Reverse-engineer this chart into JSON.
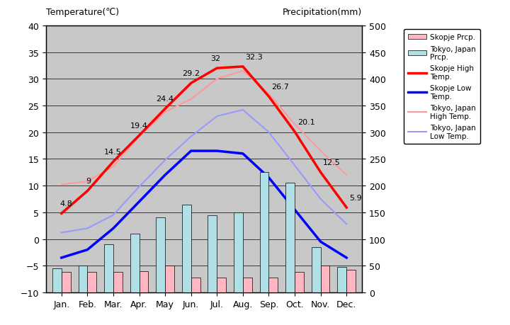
{
  "months": [
    "Jan.",
    "Feb.",
    "Mar.",
    "Apr.",
    "May",
    "Jun.",
    "Jul.",
    "Aug.",
    "Sep.",
    "Oct.",
    "Nov.",
    "Dec."
  ],
  "skopje_high": [
    4.8,
    9.0,
    14.5,
    19.4,
    24.4,
    29.2,
    32.0,
    32.3,
    26.7,
    20.1,
    12.5,
    5.9
  ],
  "skopje_low": [
    -3.5,
    -2.0,
    2.0,
    7.0,
    12.0,
    16.5,
    16.5,
    16.0,
    11.5,
    5.5,
    -0.5,
    -3.5
  ],
  "tokyo_high": [
    10.2,
    10.8,
    13.6,
    19.2,
    23.8,
    26.2,
    30.0,
    31.5,
    27.2,
    21.5,
    16.5,
    12.0
  ],
  "tokyo_low": [
    1.2,
    2.0,
    4.5,
    9.8,
    14.8,
    19.2,
    23.0,
    24.2,
    20.0,
    13.8,
    7.5,
    2.8
  ],
  "skopje_prcp_mm": [
    38,
    38,
    38,
    40,
    50,
    28,
    28,
    28,
    28,
    38,
    50,
    42
  ],
  "tokyo_prcp_mm": [
    45,
    50,
    90,
    110,
    140,
    165,
    145,
    150,
    225,
    205,
    85,
    48
  ],
  "title_left": "Temperature(℃)",
  "title_right": "Precipitation(mm)",
  "ylim_left": [
    -10,
    40
  ],
  "ylim_right": [
    0,
    500
  ],
  "bg_color": "#c8c8c8",
  "skopje_high_color": "#ff0000",
  "skopje_low_color": "#0000ff",
  "tokyo_high_color": "#ff9999",
  "tokyo_low_color": "#9999ff",
  "skopje_prcp_color": "#ffb6c1",
  "tokyo_prcp_color": "#b0e0e6",
  "label_vals": [
    "4.8",
    "9",
    "14.5",
    "19.4",
    "24.4",
    "29.2",
    "32",
    "32.3",
    "26.7",
    "20.1",
    "12.5",
    "5.9"
  ],
  "label_dx": [
    -0.05,
    -0.05,
    -0.35,
    -0.35,
    -0.35,
    -0.35,
    -0.25,
    0.1,
    0.1,
    0.1,
    0.1,
    0.1
  ],
  "label_dy": [
    1.5,
    1.5,
    1.5,
    1.5,
    1.5,
    1.5,
    1.5,
    1.5,
    1.5,
    1.5,
    1.5,
    1.5
  ]
}
